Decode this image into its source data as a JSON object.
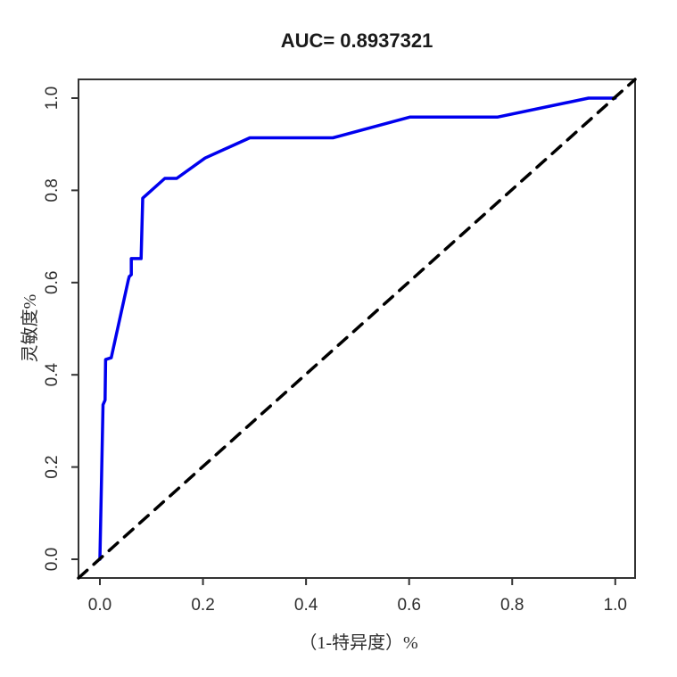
{
  "title": "AUC= 0.8937321",
  "chart_data": {
    "type": "line",
    "title": "AUC= 0.8937321",
    "xlabel": "（1-特异度）%",
    "ylabel": "灵敏度%",
    "xlim": [
      0.0,
      1.0
    ],
    "ylim": [
      0.0,
      1.0
    ],
    "x_ticks": [
      "0.0",
      "0.2",
      "0.4",
      "0.6",
      "0.8",
      "1.0"
    ],
    "y_ticks": [
      "0.0",
      "0.2",
      "0.4",
      "0.6",
      "0.8",
      "1.0"
    ],
    "grid": false,
    "legend": "none",
    "auc": 0.8937321,
    "frame_color": "#333333",
    "series": [
      {
        "name": "roc-curve",
        "color": "#0000EE",
        "style": "solid",
        "extend_full_box": false,
        "points": [
          [
            0.0,
            0.0
          ],
          [
            0.006,
            0.335
          ],
          [
            0.01,
            0.345
          ],
          [
            0.011,
            0.433
          ],
          [
            0.022,
            0.437
          ],
          [
            0.055,
            0.605
          ],
          [
            0.057,
            0.613
          ],
          [
            0.061,
            0.617
          ],
          [
            0.061,
            0.652
          ],
          [
            0.08,
            0.652
          ],
          [
            0.083,
            0.783
          ],
          [
            0.126,
            0.826
          ],
          [
            0.149,
            0.826
          ],
          [
            0.204,
            0.87
          ],
          [
            0.291,
            0.914
          ],
          [
            0.452,
            0.914
          ],
          [
            0.602,
            0.959
          ],
          [
            0.772,
            0.959
          ],
          [
            0.948,
            1.0
          ],
          [
            1.0,
            1.0
          ]
        ]
      },
      {
        "name": "chance-diagonal",
        "color": "#000000",
        "style": "dashed",
        "extend_full_box": true,
        "points": [
          [
            0.0,
            0.0
          ],
          [
            1.0,
            1.0
          ]
        ]
      }
    ]
  }
}
